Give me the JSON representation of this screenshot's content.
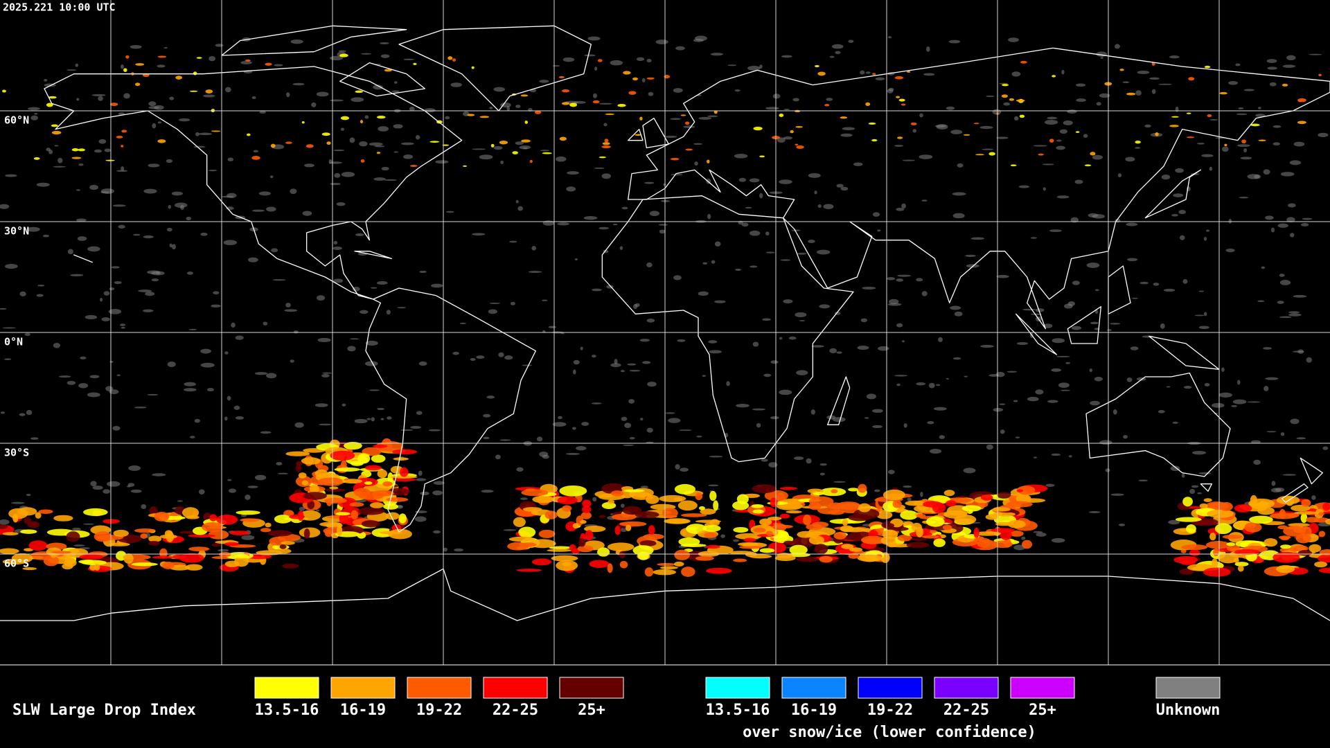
{
  "header": {
    "timestamp": "2025.221 10:00 UTC"
  },
  "map": {
    "latitude_labels": [
      "60°N",
      "30°N",
      "0°N",
      "30°S",
      "60°S"
    ]
  },
  "legend": {
    "title": "SLW Large Drop Index",
    "groups": [
      {
        "items": [
          {
            "label": "13.5-16",
            "color": "#ffff00"
          },
          {
            "label": "16-19",
            "color": "#ffa500"
          },
          {
            "label": "19-22",
            "color": "#ff5a00"
          },
          {
            "label": "22-25",
            "color": "#ff0000"
          },
          {
            "label": "25+",
            "color": "#640000"
          }
        ]
      },
      {
        "items": [
          {
            "label": "13.5-16",
            "color": "#00ffff"
          },
          {
            "label": "16-19",
            "color": "#0a84ff"
          },
          {
            "label": "19-22",
            "color": "#0000ff"
          },
          {
            "label": "22-25",
            "color": "#7a00ff"
          },
          {
            "label": "25+",
            "color": "#cc00ff"
          }
        ],
        "caption": "over snow/ice (lower confidence)"
      },
      {
        "items": [
          {
            "label": "Unknown",
            "color": "#808080"
          }
        ]
      }
    ]
  }
}
